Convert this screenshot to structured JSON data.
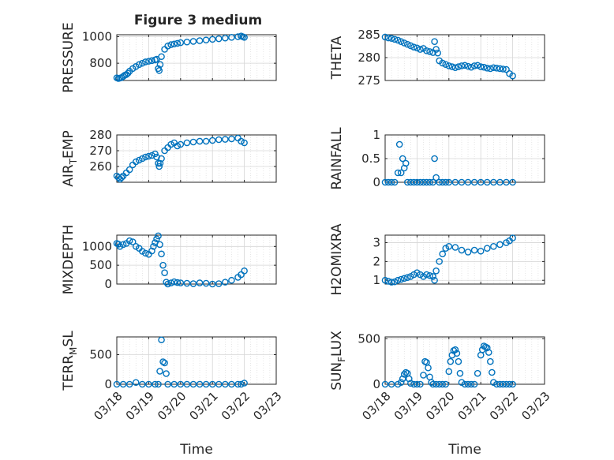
{
  "figure": {
    "title": "Figure 3 medium"
  },
  "colors": {
    "marker": "#0072BD",
    "axis": "#262626",
    "grid": "#d6d6d6"
  },
  "chart_data": [
    {
      "id": "pressure",
      "type": "scatter",
      "title": "Figure 3 medium",
      "ylabel": "PRESSURE",
      "ylabel_sub": "",
      "ylabel_tail": "",
      "xlabel": "",
      "ylim": [
        670,
        1015
      ],
      "yticks": [
        800,
        1000
      ],
      "ytick_labels": [
        "800",
        "1000"
      ],
      "xlim": [
        0,
        5
      ],
      "xticks": [
        0,
        1,
        2,
        3,
        4,
        5
      ],
      "xtick_labels": [
        "03/18",
        "03/19",
        "03/20",
        "03/21",
        "03/22",
        "03/23"
      ],
      "show_xtick_labels": false,
      "x": [
        0,
        0.05,
        0.1,
        0.15,
        0.2,
        0.25,
        0.3,
        0.35,
        0.4,
        0.5,
        0.6,
        0.7,
        0.8,
        0.9,
        1.0,
        1.1,
        1.2,
        1.25,
        1.3,
        1.33,
        1.36,
        1.4,
        1.5,
        1.6,
        1.7,
        1.8,
        1.9,
        2.0,
        2.2,
        2.4,
        2.6,
        2.8,
        3.0,
        3.2,
        3.4,
        3.6,
        3.8,
        3.9,
        3.95,
        4.0
      ],
      "y": [
        690,
        685,
        688,
        692,
        700,
        710,
        715,
        725,
        740,
        760,
        775,
        790,
        800,
        810,
        815,
        820,
        825,
        830,
        760,
        745,
        790,
        850,
        905,
        930,
        940,
        945,
        950,
        955,
        960,
        965,
        970,
        975,
        980,
        985,
        990,
        995,
        1000,
        1005,
        1000,
        995
      ]
    },
    {
      "id": "theta",
      "type": "scatter",
      "ylabel": "THETA",
      "ylabel_sub": "",
      "ylabel_tail": "",
      "xlabel": "",
      "ylim": [
        275,
        285
      ],
      "yticks": [
        275,
        280,
        285
      ],
      "ytick_labels": [
        "275",
        "280",
        "285"
      ],
      "xlim": [
        0,
        5
      ],
      "xticks": [
        0,
        1,
        2,
        3,
        4,
        5
      ],
      "xtick_labels": [
        "03/18",
        "03/19",
        "03/20",
        "03/21",
        "03/22",
        "03/23"
      ],
      "show_xtick_labels": false,
      "x": [
        0,
        0.1,
        0.2,
        0.3,
        0.4,
        0.5,
        0.6,
        0.7,
        0.8,
        0.9,
        1.0,
        1.1,
        1.2,
        1.3,
        1.4,
        1.5,
        1.55,
        1.6,
        1.65,
        1.7,
        1.8,
        1.9,
        2.0,
        2.1,
        2.2,
        2.3,
        2.4,
        2.5,
        2.6,
        2.7,
        2.8,
        2.9,
        3.0,
        3.1,
        3.2,
        3.3,
        3.4,
        3.5,
        3.6,
        3.7,
        3.8,
        3.9,
        4.0
      ],
      "y": [
        284.5,
        284.3,
        284.2,
        284,
        283.8,
        283.5,
        283.2,
        282.9,
        282.6,
        282.3,
        282.1,
        281.8,
        282,
        281.5,
        281.3,
        281.1,
        283.5,
        281.8,
        281,
        279.3,
        278.8,
        278.5,
        278.2,
        278,
        277.8,
        278,
        278.2,
        278.3,
        278.1,
        277.9,
        278.2,
        278.3,
        278,
        277.9,
        277.7,
        277.6,
        277.8,
        277.7,
        277.6,
        277.5,
        277.4,
        276.5,
        276
      ]
    },
    {
      "id": "air_temp",
      "type": "scatter",
      "ylabel": "AIR",
      "ylabel_sub": "T",
      "ylabel_tail": "EMP",
      "xlabel": "",
      "ylim": [
        250,
        280
      ],
      "yticks": [
        260,
        270,
        280
      ],
      "ytick_labels": [
        "260",
        "270",
        "280"
      ],
      "xlim": [
        0,
        5
      ],
      "xticks": [
        0,
        1,
        2,
        3,
        4,
        5
      ],
      "xtick_labels": [
        "03/18",
        "03/19",
        "03/20",
        "03/21",
        "03/22",
        "03/23"
      ],
      "show_xtick_labels": false,
      "x": [
        0,
        0.05,
        0.1,
        0.15,
        0.2,
        0.3,
        0.4,
        0.5,
        0.6,
        0.7,
        0.8,
        0.9,
        1.0,
        1.1,
        1.2,
        1.25,
        1.3,
        1.33,
        1.36,
        1.4,
        1.5,
        1.6,
        1.7,
        1.8,
        1.9,
        2.0,
        2.2,
        2.4,
        2.6,
        2.8,
        3.0,
        3.2,
        3.4,
        3.6,
        3.8,
        3.9,
        4.0
      ],
      "y": [
        254,
        253,
        252,
        253,
        254,
        256,
        258,
        261,
        263,
        264,
        265,
        266,
        266.5,
        267,
        268,
        266,
        262,
        260,
        262,
        265,
        270,
        272,
        274,
        275,
        273,
        274,
        275,
        275.5,
        276,
        276,
        276.5,
        277,
        277.2,
        277.5,
        278,
        276,
        275
      ]
    },
    {
      "id": "rainfall",
      "type": "scatter",
      "ylabel": "RAINFALL",
      "ylabel_sub": "",
      "ylabel_tail": "",
      "xlabel": "",
      "ylim": [
        0,
        1
      ],
      "yticks": [
        0,
        0.5,
        1
      ],
      "ytick_labels": [
        "0",
        "0.5",
        "1"
      ],
      "xlim": [
        0,
        5
      ],
      "xticks": [
        0,
        1,
        2,
        3,
        4,
        5
      ],
      "xtick_labels": [
        "03/18",
        "03/19",
        "03/20",
        "03/21",
        "03/22",
        "03/23"
      ],
      "show_xtick_labels": false,
      "x": [
        0,
        0.1,
        0.2,
        0.3,
        0.4,
        0.45,
        0.5,
        0.55,
        0.6,
        0.65,
        0.7,
        0.8,
        0.9,
        1.0,
        1.1,
        1.2,
        1.3,
        1.4,
        1.5,
        1.55,
        1.6,
        1.7,
        1.8,
        1.9,
        2.0,
        2.2,
        2.4,
        2.6,
        2.8,
        3.0,
        3.2,
        3.4,
        3.6,
        3.8,
        4.0
      ],
      "y": [
        0,
        0,
        0,
        0,
        0.2,
        0.8,
        0.2,
        0.5,
        0.3,
        0.4,
        0,
        0,
        0,
        0,
        0,
        0,
        0,
        0,
        0,
        0.5,
        0.1,
        0,
        0,
        0,
        0,
        0,
        0,
        0,
        0,
        0,
        0,
        0,
        0,
        0,
        0
      ]
    },
    {
      "id": "mixdepth",
      "type": "scatter",
      "ylabel": "MIXDEPTH",
      "ylabel_sub": "",
      "ylabel_tail": "",
      "xlabel": "",
      "ylim": [
        0,
        1300
      ],
      "yticks": [
        0,
        500,
        1000
      ],
      "ytick_labels": [
        "0",
        "500",
        "1000"
      ],
      "xlim": [
        0,
        5
      ],
      "xticks": [
        0,
        1,
        2,
        3,
        4,
        5
      ],
      "xtick_labels": [
        "03/18",
        "03/19",
        "03/20",
        "03/21",
        "03/22",
        "03/23"
      ],
      "show_xtick_labels": false,
      "x": [
        0,
        0.05,
        0.1,
        0.2,
        0.3,
        0.4,
        0.5,
        0.6,
        0.7,
        0.8,
        0.9,
        1.0,
        1.1,
        1.15,
        1.2,
        1.25,
        1.3,
        1.35,
        1.4,
        1.45,
        1.5,
        1.55,
        1.6,
        1.7,
        1.8,
        1.9,
        2.0,
        2.2,
        2.4,
        2.6,
        2.8,
        3.0,
        3.2,
        3.4,
        3.6,
        3.8,
        3.9,
        4.0
      ],
      "y": [
        1080,
        1060,
        1000,
        1050,
        1080,
        1150,
        1120,
        1000,
        950,
        870,
        820,
        790,
        880,
        1000,
        1100,
        1200,
        1280,
        1050,
        800,
        500,
        300,
        50,
        0,
        30,
        60,
        40,
        30,
        20,
        10,
        30,
        20,
        0,
        10,
        50,
        100,
        180,
        250,
        350
      ]
    },
    {
      "id": "h2omixra",
      "type": "scatter",
      "ylabel": "H2OMIXRA",
      "ylabel_sub": "",
      "ylabel_tail": "",
      "xlabel": "",
      "ylim": [
        0.8,
        3.4
      ],
      "yticks": [
        1,
        2,
        3
      ],
      "ytick_labels": [
        "1",
        "2",
        "3"
      ],
      "xlim": [
        0,
        5
      ],
      "xticks": [
        0,
        1,
        2,
        3,
        4,
        5
      ],
      "xtick_labels": [
        "03/18",
        "03/19",
        "03/20",
        "03/21",
        "03/22",
        "03/23"
      ],
      "show_xtick_labels": false,
      "x": [
        0,
        0.1,
        0.2,
        0.3,
        0.4,
        0.5,
        0.6,
        0.7,
        0.8,
        0.9,
        1.0,
        1.1,
        1.2,
        1.3,
        1.4,
        1.5,
        1.55,
        1.6,
        1.7,
        1.8,
        1.9,
        2.0,
        2.2,
        2.4,
        2.6,
        2.8,
        3.0,
        3.2,
        3.4,
        3.6,
        3.8,
        3.9,
        4.0
      ],
      "y": [
        1.0,
        0.95,
        0.9,
        0.92,
        1.0,
        1.05,
        1.1,
        1.15,
        1.2,
        1.3,
        1.4,
        1.3,
        1.2,
        1.3,
        1.25,
        1.2,
        1.0,
        1.5,
        2.0,
        2.4,
        2.7,
        2.8,
        2.75,
        2.6,
        2.5,
        2.6,
        2.55,
        2.7,
        2.8,
        2.9,
        3.0,
        3.1,
        3.25
      ]
    },
    {
      "id": "terr_msl",
      "type": "scatter",
      "ylabel": "TERR",
      "ylabel_sub": "M",
      "ylabel_tail": "SL",
      "xlabel": "Time",
      "ylim": [
        0,
        800
      ],
      "yticks": [
        0,
        500
      ],
      "ytick_labels": [
        "0",
        "500"
      ],
      "xlim": [
        0,
        5
      ],
      "xticks": [
        0,
        1,
        2,
        3,
        4,
        5
      ],
      "xtick_labels": [
        "03/18",
        "03/19",
        "03/20",
        "03/21",
        "03/22",
        "03/23"
      ],
      "show_xtick_labels": true,
      "x": [
        0,
        0.2,
        0.4,
        0.6,
        0.8,
        1.0,
        1.2,
        1.3,
        1.35,
        1.4,
        1.45,
        1.5,
        1.55,
        1.6,
        1.8,
        2.0,
        2.2,
        2.4,
        2.6,
        2.8,
        3.0,
        3.2,
        3.4,
        3.6,
        3.8,
        3.9,
        4.0
      ],
      "y": [
        0,
        0,
        0,
        30,
        0,
        0,
        0,
        0,
        220,
        750,
        380,
        360,
        180,
        0,
        0,
        0,
        0,
        0,
        0,
        0,
        0,
        0,
        0,
        0,
        0,
        0,
        20
      ]
    },
    {
      "id": "sun_flux",
      "type": "scatter",
      "ylabel": "SUN",
      "ylabel_sub": "F",
      "ylabel_tail": "LUX",
      "xlabel": "Time",
      "ylim": [
        0,
        520
      ],
      "yticks": [
        0,
        500
      ],
      "ytick_labels": [
        "0",
        "500"
      ],
      "xlim": [
        0,
        5
      ],
      "xticks": [
        0,
        1,
        2,
        3,
        4,
        5
      ],
      "xtick_labels": [
        "03/18",
        "03/19",
        "03/20",
        "03/21",
        "03/22",
        "03/23"
      ],
      "show_xtick_labels": true,
      "x": [
        0,
        0.2,
        0.4,
        0.5,
        0.55,
        0.6,
        0.65,
        0.7,
        0.75,
        0.8,
        0.9,
        1.0,
        1.1,
        1.2,
        1.25,
        1.3,
        1.35,
        1.4,
        1.45,
        1.5,
        1.6,
        1.7,
        1.8,
        1.9,
        2.0,
        2.05,
        2.1,
        2.15,
        2.2,
        2.25,
        2.3,
        2.35,
        2.4,
        2.5,
        2.6,
        2.7,
        2.8,
        2.9,
        3.0,
        3.05,
        3.1,
        3.15,
        3.2,
        3.25,
        3.3,
        3.35,
        3.4,
        3.5,
        3.6,
        3.7,
        3.8,
        3.9,
        4.0
      ],
      "y": [
        0,
        0,
        0,
        20,
        60,
        110,
        130,
        120,
        60,
        10,
        0,
        0,
        0,
        100,
        250,
        240,
        180,
        80,
        20,
        0,
        0,
        0,
        0,
        0,
        140,
        250,
        320,
        370,
        380,
        340,
        250,
        120,
        20,
        0,
        0,
        0,
        0,
        120,
        320,
        380,
        420,
        410,
        400,
        350,
        250,
        130,
        20,
        0,
        0,
        0,
        0,
        0,
        0
      ]
    }
  ]
}
